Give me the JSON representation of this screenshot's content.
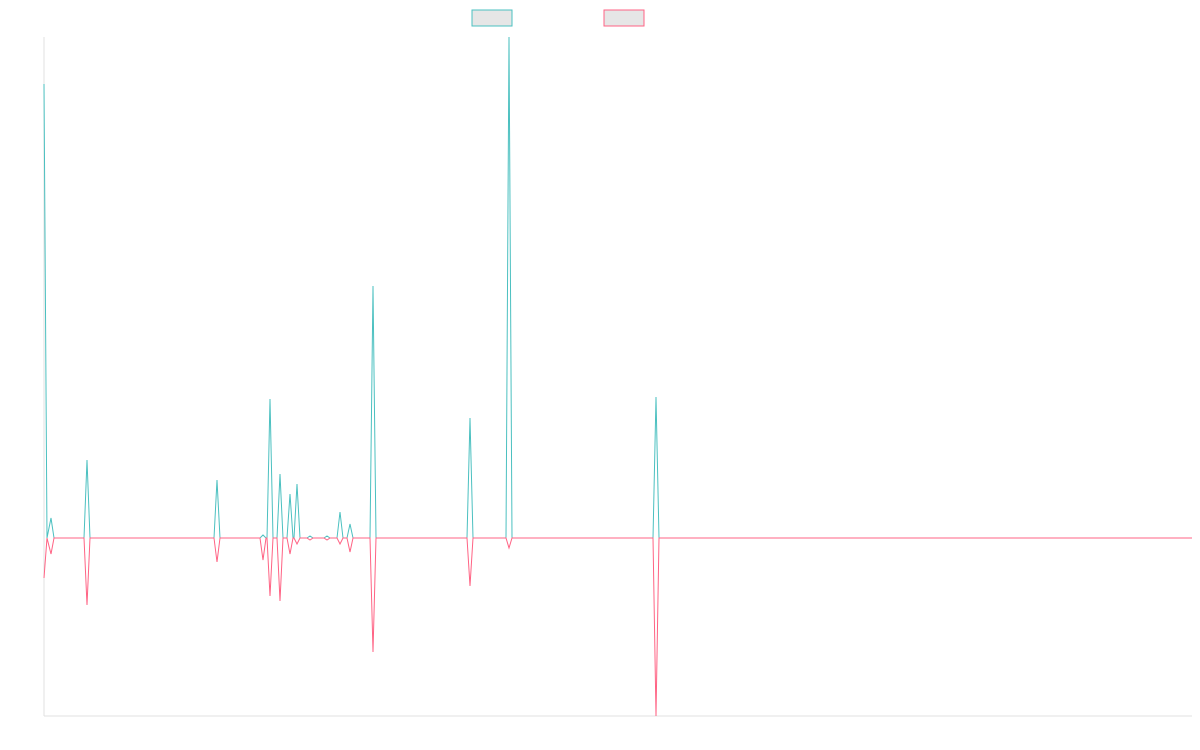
{
  "chart_data": {
    "type": "line",
    "x": [
      0,
      3,
      7,
      10,
      40,
      43,
      46,
      170,
      173,
      176,
      216,
      219,
      222,
      223,
      226,
      229,
      233,
      236,
      239,
      243,
      246,
      249,
      250,
      253,
      256,
      263,
      266,
      269,
      280,
      283,
      286,
      293,
      296,
      299,
      303,
      306,
      309,
      326,
      329,
      332,
      423,
      426,
      429,
      462,
      465,
      468,
      609,
      612,
      615,
      1148
    ],
    "series": [
      {
        "color": "#4bc0c0",
        "values": [
          454,
          0,
          20,
          0,
          0,
          78,
          0,
          0,
          58,
          0,
          0,
          3,
          0,
          0,
          139,
          0,
          0,
          64,
          0,
          0,
          44,
          0,
          0,
          54,
          0,
          0,
          2,
          0,
          0,
          2,
          0,
          0,
          26,
          0,
          0,
          14,
          0,
          0,
          252,
          0,
          0,
          120,
          0,
          0,
          501,
          0,
          0,
          141,
          0,
          0
        ]
      },
      {
        "color": "#ff6384",
        "values": [
          -40,
          0,
          -16,
          0,
          0,
          -67,
          0,
          0,
          -24,
          0,
          0,
          -22,
          0,
          0,
          -58,
          0,
          0,
          -63,
          0,
          0,
          -16,
          0,
          0,
          -6,
          0,
          0,
          -2,
          0,
          0,
          -2,
          0,
          0,
          -6,
          0,
          0,
          -14,
          0,
          0,
          -114,
          0,
          0,
          -48,
          0,
          0,
          -10,
          0,
          0,
          -178,
          0,
          0
        ]
      }
    ],
    "xlim": [
      0,
      1148
    ],
    "ylim": [
      -178,
      501
    ]
  }
}
